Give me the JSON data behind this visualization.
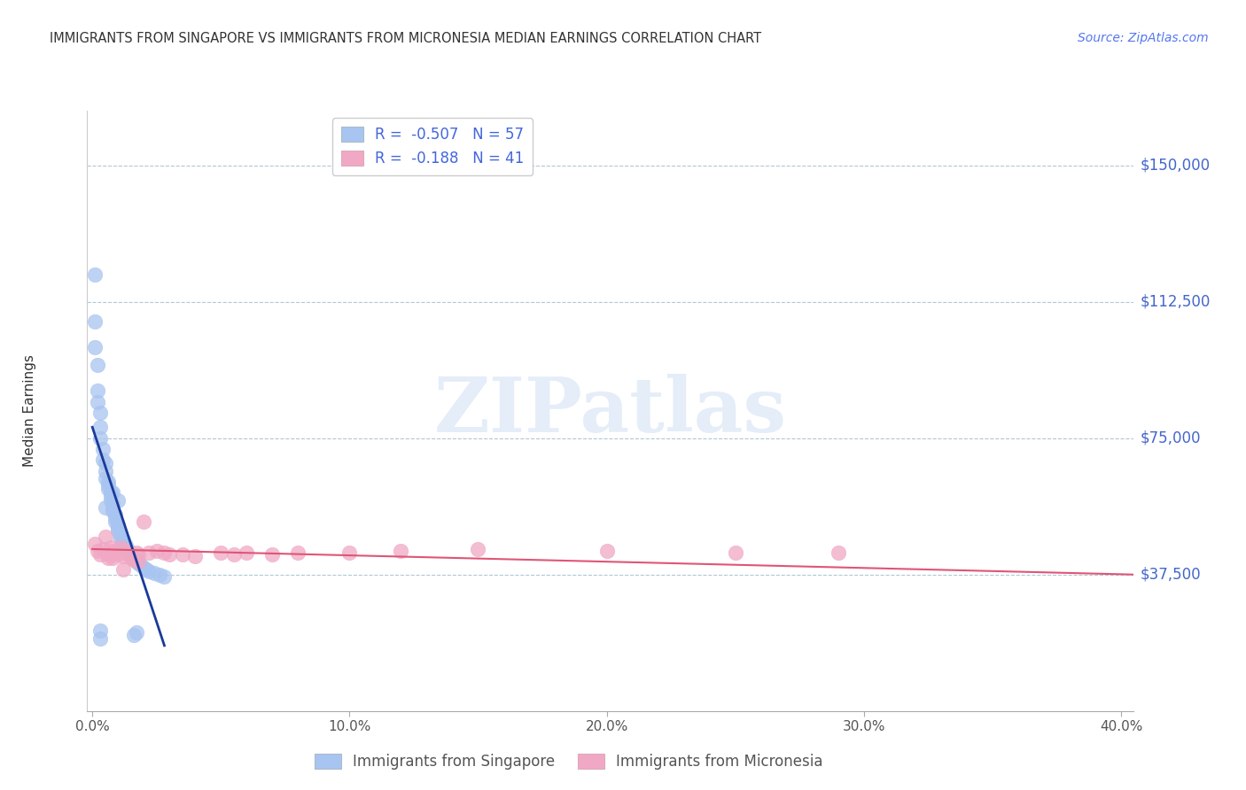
{
  "title": "IMMIGRANTS FROM SINGAPORE VS IMMIGRANTS FROM MICRONESIA MEDIAN EARNINGS CORRELATION CHART",
  "source": "Source: ZipAtlas.com",
  "ylabel": "Median Earnings",
  "ytick_labels": [
    "$37,500",
    "$75,000",
    "$112,500",
    "$150,000"
  ],
  "ytick_vals": [
    37500,
    75000,
    112500,
    150000
  ],
  "ylim": [
    0,
    165000
  ],
  "xlim": [
    -0.002,
    0.405
  ],
  "xtick_labels": [
    "0.0%",
    "10.0%",
    "20.0%",
    "30.0%",
    "40.0%"
  ],
  "xtick_vals": [
    0.0,
    0.1,
    0.2,
    0.3,
    0.4
  ],
  "singapore_R": -0.507,
  "singapore_N": 57,
  "micronesia_R": -0.188,
  "micronesia_N": 41,
  "singapore_color": "#a8c4f0",
  "micronesia_color": "#f0a8c4",
  "singapore_line_color": "#1a3a9a",
  "micronesia_line_color": "#e05575",
  "watermark_text": "ZIPatlas",
  "legend_R_color": "#4466dd",
  "legend_N_color": "#4466dd",
  "sg_x": [
    0.001,
    0.001,
    0.001,
    0.002,
    0.002,
    0.002,
    0.003,
    0.003,
    0.003,
    0.004,
    0.004,
    0.005,
    0.005,
    0.005,
    0.006,
    0.006,
    0.006,
    0.007,
    0.007,
    0.007,
    0.008,
    0.008,
    0.008,
    0.009,
    0.009,
    0.009,
    0.01,
    0.01,
    0.01,
    0.011,
    0.011,
    0.012,
    0.012,
    0.013,
    0.013,
    0.014,
    0.014,
    0.015,
    0.015,
    0.016,
    0.016,
    0.017,
    0.018,
    0.019,
    0.02,
    0.021,
    0.022,
    0.024,
    0.026,
    0.028,
    0.003,
    0.003,
    0.016,
    0.017,
    0.005,
    0.008,
    0.01
  ],
  "sg_y": [
    120000,
    107000,
    100000,
    95000,
    88000,
    85000,
    82000,
    78000,
    75000,
    72000,
    69000,
    68000,
    66000,
    64000,
    63000,
    62000,
    61000,
    60000,
    59000,
    58000,
    57000,
    56000,
    55000,
    54000,
    53000,
    52000,
    51000,
    50000,
    49500,
    48500,
    47500,
    47000,
    46000,
    45500,
    44500,
    44000,
    43500,
    43000,
    42500,
    42000,
    41500,
    41000,
    40500,
    40000,
    39500,
    39000,
    38500,
    38000,
    37500,
    37000,
    22000,
    20000,
    21000,
    21500,
    56000,
    60000,
    58000
  ],
  "mi_x": [
    0.001,
    0.002,
    0.003,
    0.004,
    0.005,
    0.006,
    0.006,
    0.007,
    0.007,
    0.008,
    0.008,
    0.009,
    0.01,
    0.011,
    0.012,
    0.013,
    0.014,
    0.015,
    0.016,
    0.017,
    0.018,
    0.02,
    0.022,
    0.025,
    0.028,
    0.03,
    0.035,
    0.04,
    0.05,
    0.06,
    0.07,
    0.08,
    0.1,
    0.12,
    0.15,
    0.2,
    0.25,
    0.29,
    0.012,
    0.018,
    0.055
  ],
  "mi_y": [
    46000,
    44000,
    43000,
    44500,
    48000,
    43000,
    42000,
    45000,
    43000,
    44000,
    42000,
    43500,
    43000,
    45000,
    42500,
    44000,
    43000,
    42000,
    41500,
    43500,
    43000,
    52000,
    43500,
    44000,
    43500,
    43000,
    43000,
    42500,
    43500,
    43500,
    43000,
    43500,
    43500,
    44000,
    44500,
    44000,
    43500,
    43500,
    39000,
    41000,
    43000
  ],
  "sg_line_x": [
    0.0,
    0.028
  ],
  "sg_line_y": [
    78000,
    18000
  ],
  "mi_line_x": [
    0.0,
    0.405
  ],
  "mi_line_y": [
    44500,
    37500
  ]
}
